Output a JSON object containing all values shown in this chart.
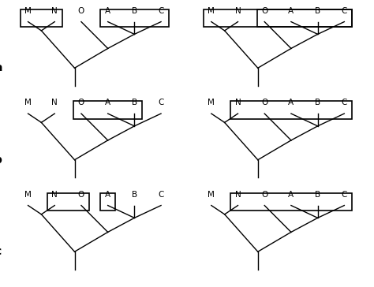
{
  "taxa": [
    "M",
    "N",
    "O",
    "A",
    "B",
    "C"
  ],
  "panels": [
    {
      "label": "a",
      "row": 0,
      "col": 0,
      "boxes": [
        {
          "taxa": [
            "M",
            "N"
          ]
        },
        {
          "taxa": [
            "A",
            "B",
            "C"
          ]
        }
      ]
    },
    {
      "label": "",
      "row": 0,
      "col": 1,
      "boxes": [
        {
          "taxa": [
            "M",
            "N",
            "O",
            "A",
            "B",
            "C"
          ]
        },
        {
          "taxa": [
            "O",
            "A",
            "B",
            "C"
          ]
        }
      ]
    },
    {
      "label": "b",
      "row": 1,
      "col": 0,
      "boxes": [
        {
          "taxa": [
            "O",
            "A",
            "B"
          ]
        }
      ]
    },
    {
      "label": "",
      "row": 1,
      "col": 1,
      "boxes": [
        {
          "taxa": [
            "N",
            "O",
            "A",
            "B",
            "C"
          ]
        }
      ]
    },
    {
      "label": "c",
      "row": 2,
      "col": 0,
      "boxes": [
        {
          "taxa": [
            "N",
            "O"
          ]
        },
        {
          "taxa": [
            "A"
          ]
        }
      ]
    },
    {
      "label": "",
      "row": 2,
      "col": 1,
      "boxes": [
        {
          "taxa": [
            "N",
            "O",
            "A",
            "B",
            "C"
          ]
        }
      ]
    }
  ],
  "bg": "#ffffff",
  "lc": "black",
  "lw": 1.0,
  "fs": 7.5
}
